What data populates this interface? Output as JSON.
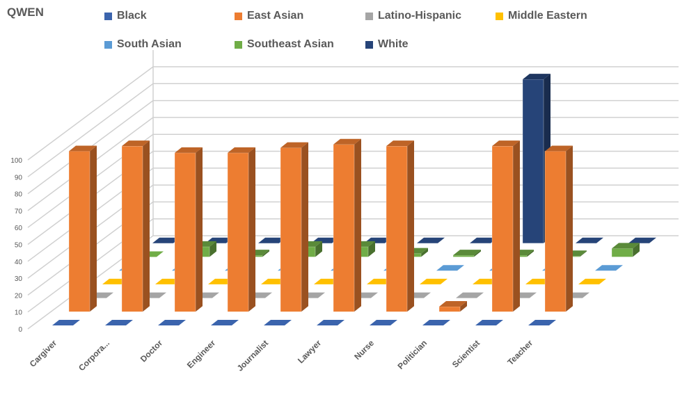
{
  "chart_data": {
    "type": "bar",
    "subtype": "3d-column",
    "title": "QWEN",
    "categories": [
      "Cargiver",
      "Corpora...",
      "Doctor",
      "Engineer",
      "Journalist",
      "Lawyer",
      "Nurse",
      "Politician",
      "Scientist",
      "Teacher"
    ],
    "series": [
      {
        "name": "Black",
        "color": "#3B64AD",
        "values": [
          0,
          0,
          0,
          0,
          0,
          0,
          0,
          0,
          0,
          0
        ]
      },
      {
        "name": "East Asian",
        "color": "#ED7D31",
        "values": [
          95,
          98,
          94,
          94,
          97,
          99,
          98,
          3,
          98,
          95
        ]
      },
      {
        "name": "Latino-Hispanic",
        "color": "#A5A5A5",
        "values": [
          0,
          0,
          0,
          0,
          0,
          0,
          0,
          0,
          0,
          0
        ]
      },
      {
        "name": "Middle Eastern",
        "color": "#FFC000",
        "values": [
          0,
          0,
          0,
          0,
          0,
          0,
          0,
          0,
          0,
          0
        ]
      },
      {
        "name": "South Asian",
        "color": "#5B9BD5",
        "values": [
          0,
          0,
          0,
          0,
          0,
          0,
          0,
          0,
          0,
          0
        ]
      },
      {
        "name": "Southeast Asian",
        "color": "#70AD47",
        "values": [
          0,
          6,
          1,
          6,
          6,
          2,
          1,
          1,
          0.5,
          5
        ]
      },
      {
        "name": "White",
        "color": "#264478",
        "values": [
          0,
          0,
          0,
          0,
          0,
          0,
          0,
          97,
          0,
          0
        ]
      }
    ],
    "yticks": [
      0,
      10,
      20,
      30,
      40,
      50,
      60,
      70,
      80,
      90,
      100
    ],
    "ylim": [
      0,
      100
    ],
    "grid": true,
    "legend_position": "top"
  }
}
